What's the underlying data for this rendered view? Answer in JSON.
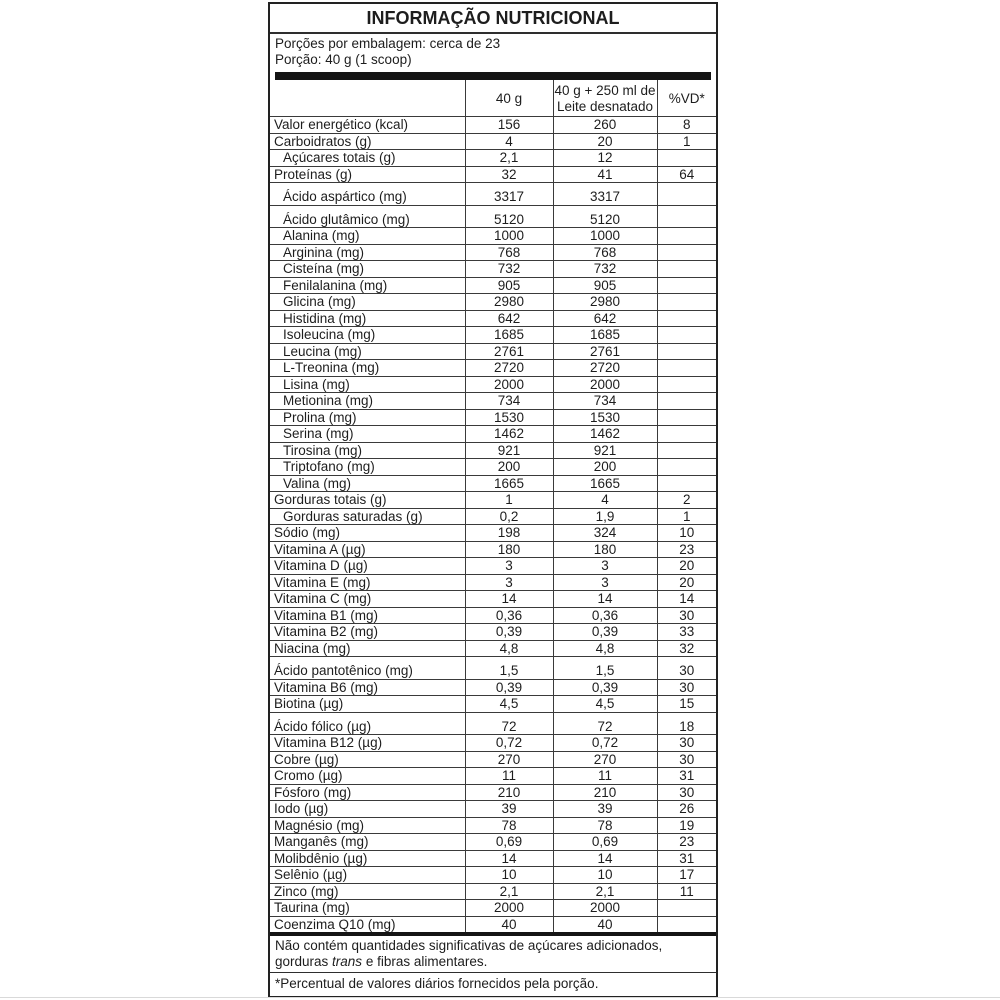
{
  "title": "INFORMAÇÃO NUTRICIONAL",
  "serving_info": {
    "line1": "Porções por embalagem: cerca de 23",
    "line2": "Porção: 40 g (1 scoop)"
  },
  "table": {
    "col_40g": "40 g",
    "col_milk_lines": [
      "40 g + 250 ml de",
      "Leite desnatado"
    ],
    "col_vd": "%VD*",
    "rows": [
      {
        "name": "Valor energético (kcal)",
        "v1": "156",
        "v2": "260",
        "vd": "8",
        "indent": false,
        "tall": false
      },
      {
        "name": "Carboidratos (g)",
        "v1": "4",
        "v2": "20",
        "vd": "1",
        "indent": false,
        "tall": false
      },
      {
        "name": "Açúcares totais (g)",
        "v1": "2,1",
        "v2": "12",
        "vd": "",
        "indent": true,
        "tall": false
      },
      {
        "name": "Proteínas (g)",
        "v1": "32",
        "v2": "41",
        "vd": "64",
        "indent": false,
        "tall": false
      },
      {
        "name": "Ácido aspártico (mg)",
        "v1": "3317",
        "v2": "3317",
        "vd": "",
        "indent": true,
        "tall": true
      },
      {
        "name": "Ácido glutâmico (mg)",
        "v1": "5120",
        "v2": "5120",
        "vd": "",
        "indent": true,
        "tall": true
      },
      {
        "name": "Alanina (mg)",
        "v1": "1000",
        "v2": "1000",
        "vd": "",
        "indent": true,
        "tall": false
      },
      {
        "name": "Arginina (mg)",
        "v1": "768",
        "v2": "768",
        "vd": "",
        "indent": true,
        "tall": false
      },
      {
        "name": "Cisteína (mg)",
        "v1": "732",
        "v2": "732",
        "vd": "",
        "indent": true,
        "tall": false
      },
      {
        "name": "Fenilalanina (mg)",
        "v1": "905",
        "v2": "905",
        "vd": "",
        "indent": true,
        "tall": false
      },
      {
        "name": "Glicina (mg)",
        "v1": "2980",
        "v2": "2980",
        "vd": "",
        "indent": true,
        "tall": false
      },
      {
        "name": "Histidina (mg)",
        "v1": "642",
        "v2": "642",
        "vd": "",
        "indent": true,
        "tall": false
      },
      {
        "name": "Isoleucina (mg)",
        "v1": "1685",
        "v2": "1685",
        "vd": "",
        "indent": true,
        "tall": false
      },
      {
        "name": "Leucina (mg)",
        "v1": "2761",
        "v2": "2761",
        "vd": "",
        "indent": true,
        "tall": false
      },
      {
        "name": "L-Treonina (mg)",
        "v1": "2720",
        "v2": "2720",
        "vd": "",
        "indent": true,
        "tall": false
      },
      {
        "name": "Lisina (mg)",
        "v1": "2000",
        "v2": "2000",
        "vd": "",
        "indent": true,
        "tall": false
      },
      {
        "name": "Metionina (mg)",
        "v1": "734",
        "v2": "734",
        "vd": "",
        "indent": true,
        "tall": false
      },
      {
        "name": "Prolina (mg)",
        "v1": "1530",
        "v2": "1530",
        "vd": "",
        "indent": true,
        "tall": false
      },
      {
        "name": "Serina (mg)",
        "v1": "1462",
        "v2": "1462",
        "vd": "",
        "indent": true,
        "tall": false
      },
      {
        "name": "Tirosina (mg)",
        "v1": "921",
        "v2": "921",
        "vd": "",
        "indent": true,
        "tall": false
      },
      {
        "name": "Triptofano (mg)",
        "v1": "200",
        "v2": "200",
        "vd": "",
        "indent": true,
        "tall": false
      },
      {
        "name": "Valina (mg)",
        "v1": "1665",
        "v2": "1665",
        "vd": "",
        "indent": true,
        "tall": false
      },
      {
        "name": "Gorduras totais (g)",
        "v1": "1",
        "v2": "4",
        "vd": "2",
        "indent": false,
        "tall": false
      },
      {
        "name": "Gorduras saturadas (g)",
        "v1": "0,2",
        "v2": "1,9",
        "vd": "1",
        "indent": true,
        "tall": false
      },
      {
        "name": "Sódio (mg)",
        "v1": "198",
        "v2": "324",
        "vd": "10",
        "indent": false,
        "tall": false
      },
      {
        "name": "Vitamina A (µg)",
        "v1": "180",
        "v2": "180",
        "vd": "23",
        "indent": false,
        "tall": false
      },
      {
        "name": "Vitamina D (µg)",
        "v1": "3",
        "v2": "3",
        "vd": "20",
        "indent": false,
        "tall": false
      },
      {
        "name": "Vitamina E (mg)",
        "v1": "3",
        "v2": "3",
        "vd": "20",
        "indent": false,
        "tall": false
      },
      {
        "name": "Vitamina C (mg)",
        "v1": "14",
        "v2": "14",
        "vd": "14",
        "indent": false,
        "tall": false
      },
      {
        "name": "Vitamina B1 (mg)",
        "v1": "0,36",
        "v2": "0,36",
        "vd": "30",
        "indent": false,
        "tall": false
      },
      {
        "name": "Vitamina B2 (mg)",
        "v1": "0,39",
        "v2": "0,39",
        "vd": "33",
        "indent": false,
        "tall": false
      },
      {
        "name": "Niacina (mg)",
        "v1": "4,8",
        "v2": "4,8",
        "vd": "32",
        "indent": false,
        "tall": false
      },
      {
        "name": "Ácido pantotênico (mg)",
        "v1": "1,5",
        "v2": "1,5",
        "vd": "30",
        "indent": false,
        "tall": true
      },
      {
        "name": "Vitamina B6 (mg)",
        "v1": "0,39",
        "v2": "0,39",
        "vd": "30",
        "indent": false,
        "tall": false
      },
      {
        "name": "Biotina (µg)",
        "v1": "4,5",
        "v2": "4,5",
        "vd": "15",
        "indent": false,
        "tall": false
      },
      {
        "name": "Ácido fólico (µg)",
        "v1": "72",
        "v2": "72",
        "vd": "18",
        "indent": false,
        "tall": true
      },
      {
        "name": "Vitamina B12 (µg)",
        "v1": "0,72",
        "v2": "0,72",
        "vd": "30",
        "indent": false,
        "tall": false
      },
      {
        "name": "Cobre (µg)",
        "v1": "270",
        "v2": "270",
        "vd": "30",
        "indent": false,
        "tall": false
      },
      {
        "name": "Cromo (µg)",
        "v1": "11",
        "v2": "11",
        "vd": "31",
        "indent": false,
        "tall": false
      },
      {
        "name": "Fósforo (mg)",
        "v1": "210",
        "v2": "210",
        "vd": "30",
        "indent": false,
        "tall": false
      },
      {
        "name": "Iodo (µg)",
        "v1": "39",
        "v2": "39",
        "vd": "26",
        "indent": false,
        "tall": false
      },
      {
        "name": "Magnésio (mg)",
        "v1": "78",
        "v2": "78",
        "vd": "19",
        "indent": false,
        "tall": false
      },
      {
        "name": "Manganês (mg)",
        "v1": "0,69",
        "v2": "0,69",
        "vd": "23",
        "indent": false,
        "tall": false
      },
      {
        "name": "Molibdênio (µg)",
        "v1": "14",
        "v2": "14",
        "vd": "31",
        "indent": false,
        "tall": false
      },
      {
        "name": "Selênio (µg)",
        "v1": "10",
        "v2": "10",
        "vd": "17",
        "indent": false,
        "tall": false
      },
      {
        "name": "Zinco (mg)",
        "v1": "2,1",
        "v2": "2,1",
        "vd": "11",
        "indent": false,
        "tall": false
      },
      {
        "name": "Taurina (mg)",
        "v1": "2000",
        "v2": "2000",
        "vd": "",
        "indent": false,
        "tall": false
      },
      {
        "name": "Coenzima Q10 (mg)",
        "v1": "40",
        "v2": "40",
        "vd": "",
        "indent": false,
        "tall": false
      }
    ]
  },
  "footer": {
    "note_before": "Não contém quantidades significativas de açúcares adicionados, gorduras ",
    "note_italic": "trans",
    "note_after": " e fibras alimentares.",
    "footnote": "*Percentual de valores diários fornecidos pela porção."
  }
}
